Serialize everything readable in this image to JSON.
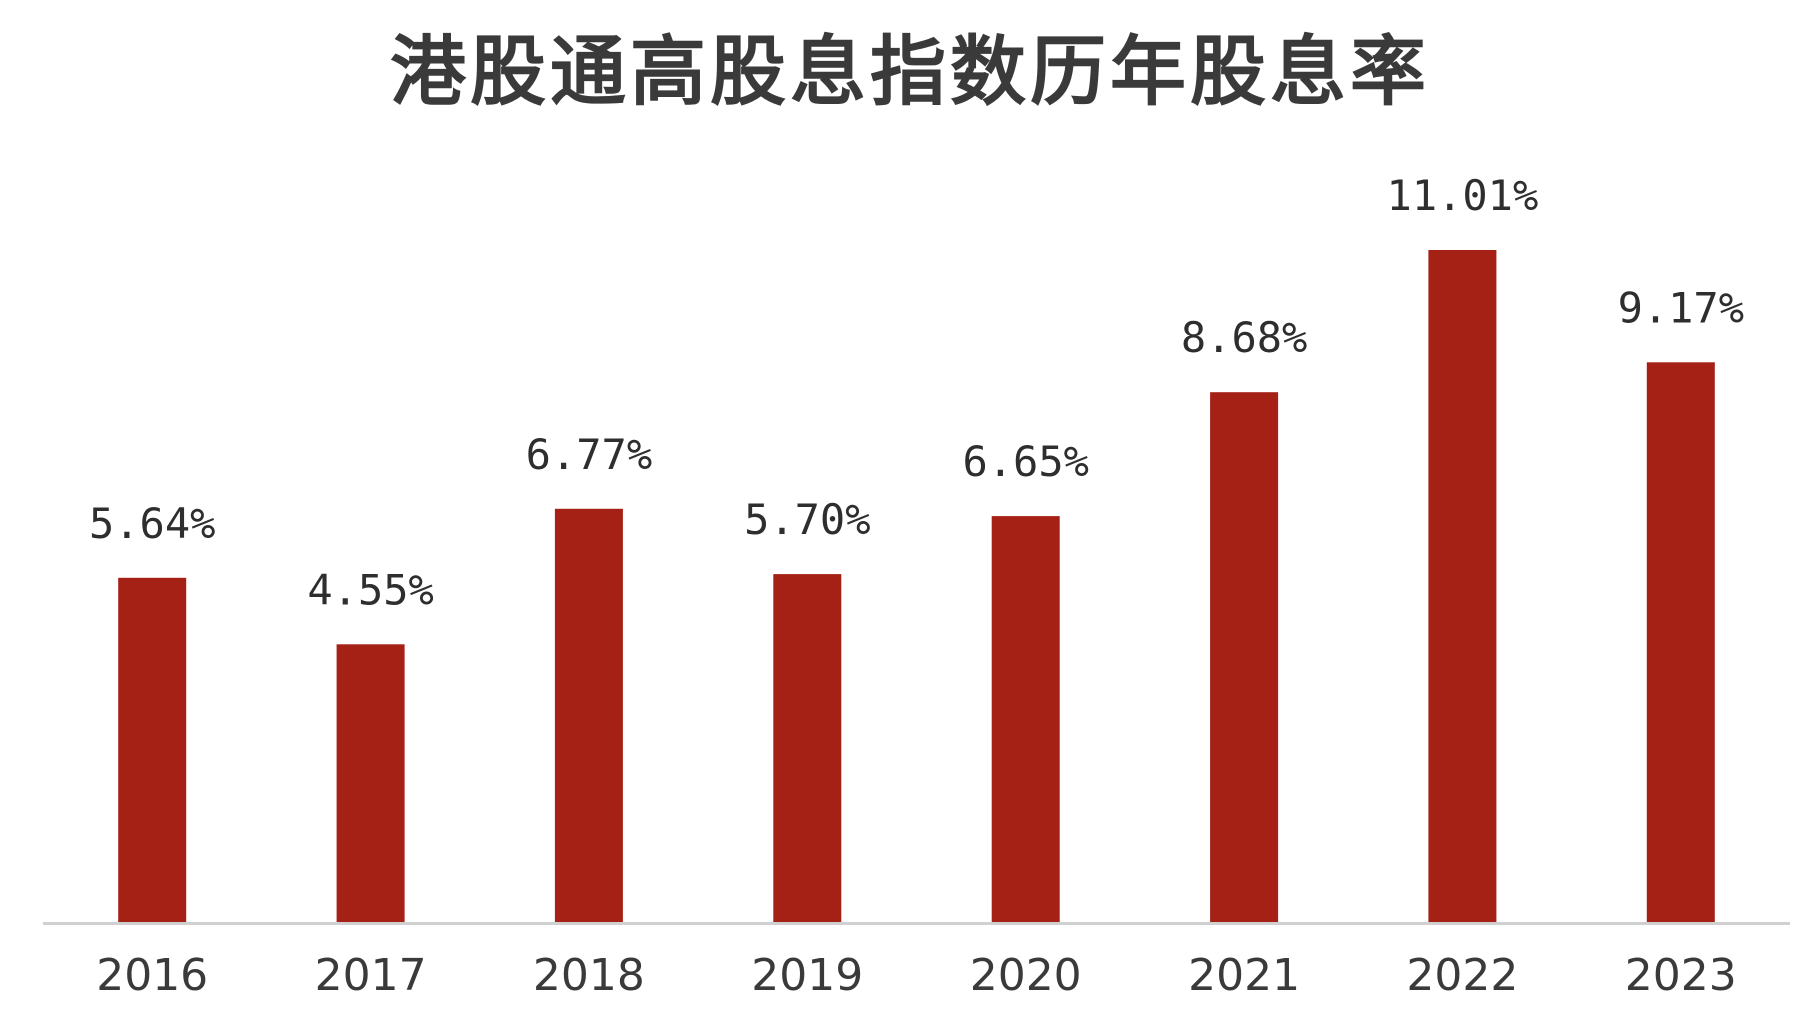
{
  "chart_data": {
    "type": "bar",
    "title": "港股通高股息指数历年股息率",
    "xlabel": "",
    "ylabel": "",
    "categories": [
      "2016",
      "2017",
      "2018",
      "2019",
      "2020",
      "2021",
      "2022",
      "2023"
    ],
    "values": [
      5.64,
      4.55,
      6.77,
      5.7,
      6.65,
      8.68,
      11.01,
      9.17
    ],
    "data_labels": [
      "5.64%",
      "4.55%",
      "6.77%",
      "5.70%",
      "6.65%",
      "8.68%",
      "11.01%",
      "9.17%"
    ],
    "ylim": [
      0,
      11.01
    ],
    "grid": false,
    "legend": "none",
    "colors": {
      "bar": "#A52015",
      "axis": "#d0d0d0",
      "text": "#3a3a3a"
    }
  }
}
